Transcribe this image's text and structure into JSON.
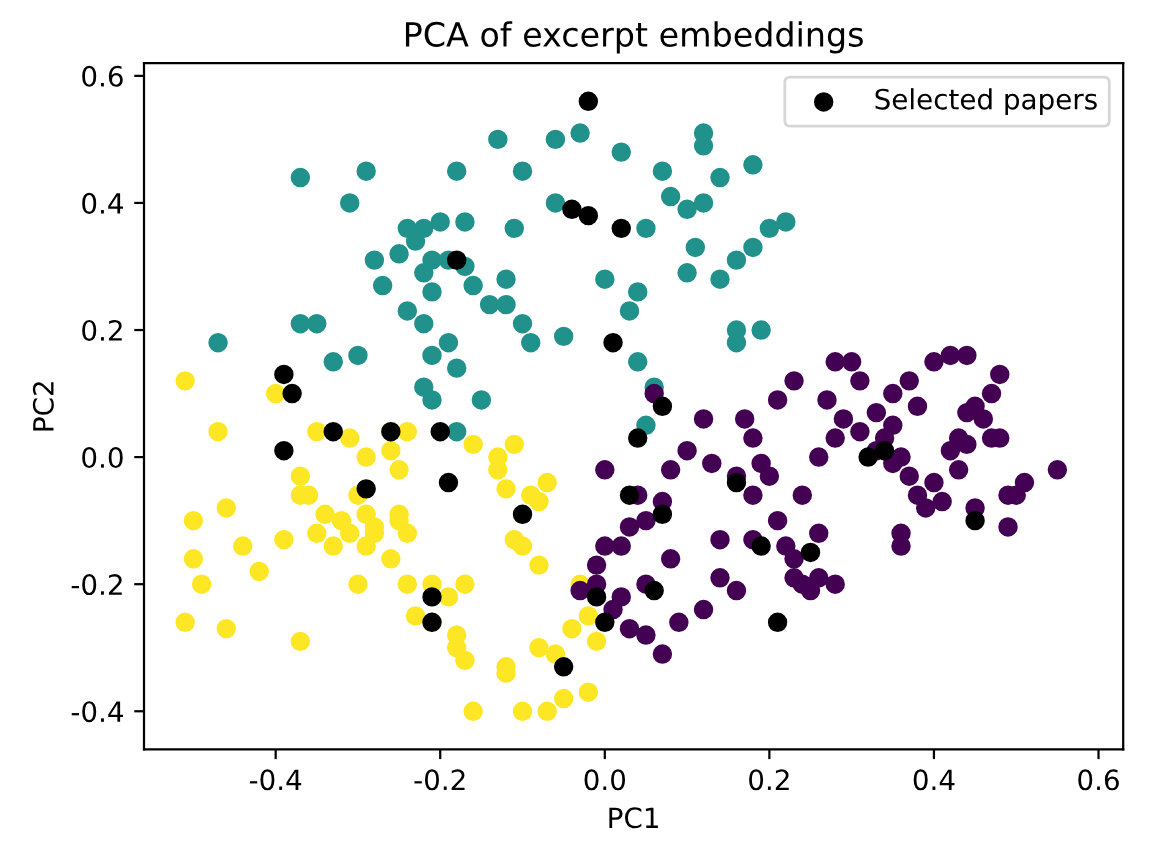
{
  "chart_data": {
    "type": "scatter",
    "title": "PCA of excerpt embeddings",
    "xlabel": "PC1",
    "ylabel": "PC2",
    "xlim": [
      -0.56,
      0.63
    ],
    "ylim": [
      -0.46,
      0.62
    ],
    "xticks": [
      -0.4,
      -0.2,
      {
        "value": 0,
        "label": "0.0"
      },
      0.2,
      0.4,
      0.6
    ],
    "yticks": [
      -0.4,
      -0.2,
      {
        "value": 0,
        "label": "0.0"
      },
      0.2,
      0.4,
      0.6
    ],
    "grid": false,
    "legend": "top right",
    "marker": "circle",
    "series": [
      {
        "color": "#21918c",
        "x": [
          -0.37,
          -0.29,
          -0.31,
          -0.28,
          -0.25,
          -0.24,
          -0.22,
          -0.23,
          -0.22,
          -0.2,
          -0.17,
          -0.19,
          -0.21,
          -0.17,
          -0.18,
          -0.13,
          -0.1,
          -0.06,
          -0.03,
          0.02,
          0.07,
          0.08,
          0.1,
          0.05,
          -0.06,
          -0.11,
          -0.12,
          -0.16,
          -0.14,
          -0.21,
          -0.24,
          -0.27,
          -0.37,
          -0.35,
          -0.47,
          -0.33,
          -0.3,
          -0.22,
          -0.21,
          -0.19,
          -0.18,
          -0.22,
          -0.21,
          -0.15,
          -0.12,
          -0.1,
          -0.09,
          -0.05,
          0.03,
          0.0,
          0.04,
          0.12,
          0.11,
          0.16,
          0.18,
          0.14,
          0.16,
          0.19,
          0.16,
          0.2,
          0.22,
          0.14,
          0.18,
          0.12,
          0.12,
          0.1,
          0.04,
          0.06,
          -0.18,
          0.05
        ],
        "values": [
          0.44,
          0.45,
          0.4,
          0.31,
          0.32,
          0.36,
          0.36,
          0.34,
          0.29,
          0.37,
          0.37,
          0.31,
          0.31,
          0.3,
          0.45,
          0.5,
          0.45,
          0.5,
          0.51,
          0.48,
          0.45,
          0.41,
          0.39,
          0.36,
          0.4,
          0.36,
          0.28,
          0.27,
          0.24,
          0.26,
          0.23,
          0.27,
          0.21,
          0.21,
          0.18,
          0.15,
          0.16,
          0.21,
          0.16,
          0.18,
          0.14,
          0.11,
          0.09,
          0.09,
          0.24,
          0.21,
          0.18,
          0.19,
          0.23,
          0.28,
          0.26,
          0.4,
          0.33,
          0.31,
          0.33,
          0.28,
          0.2,
          0.2,
          0.18,
          0.36,
          0.37,
          0.44,
          0.46,
          0.49,
          0.51,
          0.29,
          0.15,
          0.11,
          0.04,
          0.05
        ]
      },
      {
        "color": "#fde725",
        "x": [
          -0.51,
          -0.47,
          -0.4,
          -0.35,
          -0.31,
          -0.26,
          -0.24,
          -0.26,
          -0.25,
          -0.29,
          -0.37,
          -0.37,
          -0.5,
          -0.46,
          -0.36,
          -0.34,
          -0.32,
          -0.29,
          -0.3,
          -0.28,
          -0.25,
          -0.24,
          -0.25,
          -0.5,
          -0.49,
          -0.44,
          -0.39,
          -0.35,
          -0.33,
          -0.31,
          -0.29,
          -0.28,
          -0.3,
          -0.26,
          -0.24,
          -0.42,
          -0.51,
          -0.46,
          -0.37,
          -0.23,
          -0.21,
          -0.18,
          -0.19,
          -0.17,
          -0.12,
          -0.1,
          -0.09,
          -0.08,
          -0.1,
          -0.08,
          -0.11,
          -0.13,
          -0.13,
          -0.11,
          -0.16,
          -0.08,
          -0.06,
          -0.1,
          -0.07,
          -0.05,
          -0.02,
          -0.02,
          -0.04,
          -0.18,
          -0.17,
          -0.16,
          -0.12,
          -0.12,
          -0.21,
          -0.03,
          -0.07,
          -0.01
        ],
        "values": [
          0.12,
          0.04,
          0.1,
          0.04,
          0.03,
          0.04,
          0.04,
          0.01,
          -0.02,
          0.0,
          -0.03,
          -0.06,
          -0.1,
          -0.08,
          -0.06,
          -0.09,
          -0.1,
          -0.09,
          -0.06,
          -0.11,
          -0.1,
          -0.12,
          -0.09,
          -0.16,
          -0.2,
          -0.14,
          -0.13,
          -0.12,
          -0.14,
          -0.12,
          -0.14,
          -0.12,
          -0.2,
          -0.16,
          -0.2,
          -0.18,
          -0.26,
          -0.27,
          -0.29,
          -0.25,
          -0.26,
          -0.28,
          -0.22,
          -0.2,
          -0.05,
          -0.09,
          -0.06,
          -0.07,
          -0.14,
          -0.17,
          -0.13,
          -0.02,
          0.0,
          0.02,
          0.02,
          -0.3,
          -0.31,
          -0.4,
          -0.4,
          -0.38,
          -0.37,
          -0.25,
          -0.27,
          -0.3,
          -0.32,
          -0.4,
          -0.33,
          -0.34,
          -0.2,
          -0.2,
          -0.04,
          -0.29
        ]
      },
      {
        "color": "#440154",
        "x": [
          0.02,
          0.03,
          0.05,
          0.04,
          0.07,
          0.08,
          0.1,
          0.12,
          0.06,
          0.0,
          -0.03,
          -0.01,
          0.0,
          0.02,
          0.03,
          -0.01,
          0.01,
          0.05,
          0.08,
          0.09,
          0.12,
          0.14,
          0.14,
          0.16,
          0.18,
          0.18,
          0.21,
          0.22,
          0.23,
          0.23,
          0.24,
          0.25,
          0.26,
          0.28,
          0.26,
          0.24,
          0.2,
          0.19,
          0.18,
          0.17,
          0.21,
          0.23,
          0.27,
          0.26,
          0.29,
          0.31,
          0.33,
          0.34,
          0.35,
          0.35,
          0.36,
          0.37,
          0.38,
          0.39,
          0.4,
          0.42,
          0.43,
          0.43,
          0.44,
          0.46,
          0.47,
          0.48,
          0.49,
          0.5,
          0.51,
          0.55,
          0.49,
          0.45,
          0.41,
          0.36,
          0.44,
          0.45,
          0.47,
          0.48,
          0.42,
          0.44,
          0.38,
          0.35,
          0.31,
          0.4,
          0.37,
          0.33,
          0.28,
          0.13,
          0.16,
          0.05,
          0.07,
          0.36,
          0.28,
          0.3
        ],
        "values": [
          -0.14,
          -0.11,
          -0.1,
          -0.06,
          -0.07,
          -0.02,
          0.01,
          0.06,
          0.1,
          -0.02,
          -0.21,
          -0.17,
          -0.14,
          -0.22,
          -0.27,
          -0.2,
          -0.24,
          -0.2,
          -0.16,
          -0.26,
          -0.24,
          -0.13,
          -0.19,
          -0.21,
          -0.06,
          -0.13,
          -0.1,
          -0.14,
          -0.19,
          -0.16,
          -0.2,
          -0.21,
          -0.19,
          -0.2,
          -0.12,
          -0.06,
          -0.03,
          -0.01,
          0.03,
          0.06,
          0.09,
          0.12,
          0.09,
          0.0,
          0.06,
          0.04,
          0.01,
          0.03,
          -0.01,
          0.05,
          0.0,
          -0.03,
          -0.06,
          -0.08,
          -0.04,
          0.01,
          0.03,
          -0.02,
          0.02,
          0.06,
          0.03,
          0.03,
          -0.06,
          -0.06,
          -0.04,
          -0.02,
          -0.11,
          -0.08,
          -0.07,
          -0.12,
          0.07,
          0.08,
          0.1,
          0.13,
          0.16,
          0.16,
          0.08,
          0.1,
          0.12,
          0.15,
          0.12,
          0.07,
          0.03,
          -0.01,
          -0.03,
          -0.28,
          -0.31,
          -0.14,
          0.15,
          0.15
        ]
      },
      {
        "name": "Selected papers",
        "color": "#000000",
        "x": [
          -0.02,
          -0.04,
          -0.02,
          0.02,
          -0.18,
          0.01,
          -0.39,
          -0.38,
          -0.33,
          -0.26,
          -0.2,
          -0.39,
          -0.29,
          -0.1,
          -0.19,
          -0.21,
          -0.21,
          -0.05,
          0.0,
          -0.01,
          0.03,
          0.07,
          0.04,
          0.07,
          0.21,
          0.16,
          0.19,
          0.32,
          0.34,
          0.45,
          0.25,
          0.06
        ],
        "values": [
          0.56,
          0.39,
          0.38,
          0.36,
          0.31,
          0.18,
          0.13,
          0.1,
          0.04,
          0.04,
          0.04,
          0.01,
          -0.05,
          -0.09,
          -0.04,
          -0.22,
          -0.26,
          -0.33,
          -0.26,
          -0.22,
          -0.06,
          -0.09,
          0.03,
          0.08,
          -0.26,
          -0.04,
          -0.14,
          0.0,
          0.01,
          -0.1,
          -0.15,
          -0.21
        ]
      }
    ]
  }
}
